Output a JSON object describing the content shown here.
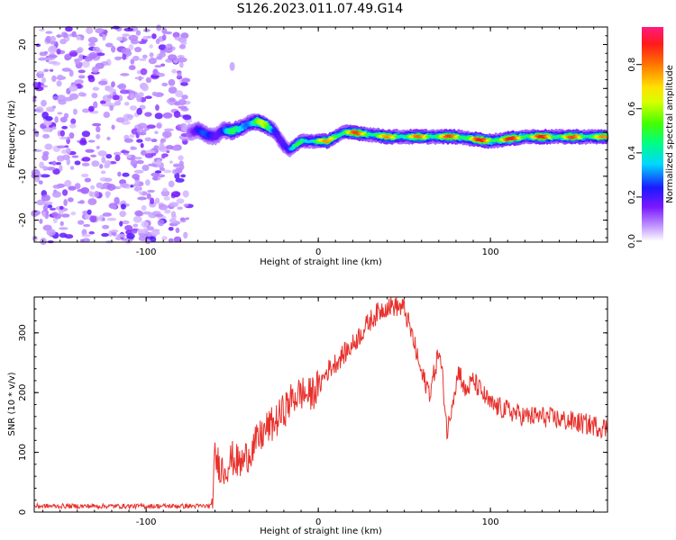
{
  "title": "S126.2023.011.07.49.G14",
  "chart_data": [
    {
      "type": "heatmap",
      "xlabel": "Height of straight line (km)",
      "ylabel": "Frequency (Hz)",
      "xlim": [
        -165,
        168
      ],
      "ylim": [
        -25,
        24
      ],
      "xticks": [
        -100,
        0,
        100
      ],
      "yticks": [
        -20,
        -10,
        0,
        10,
        20
      ],
      "colorbar": {
        "label": "Normalized spectral amplitude",
        "ticks": [
          "0.0",
          "0.2",
          "0.4",
          "0.6",
          "0.8"
        ],
        "range": [
          0,
          0.97
        ]
      },
      "ridge": {
        "x": [
          -75,
          -70,
          -65,
          -60,
          -55,
          -50,
          -45,
          -40,
          -35,
          -30,
          -25,
          -20,
          -17,
          -15,
          -10,
          -5,
          0,
          5,
          10,
          15,
          20,
          40,
          60,
          80,
          100,
          120,
          140,
          160,
          168
        ],
        "freq": [
          0,
          0.5,
          -0.5,
          -1,
          0.5,
          0.3,
          1,
          2,
          2.5,
          1.5,
          0,
          -3,
          -4,
          -3.5,
          -2,
          -2,
          -2,
          -2,
          -1,
          0,
          0,
          -1,
          -1,
          -1,
          -2,
          -1,
          -1,
          -1,
          -1
        ],
        "amp": [
          0.2,
          0.25,
          0.3,
          0.35,
          0.4,
          0.5,
          0.5,
          0.6,
          0.7,
          0.6,
          0.4,
          0.35,
          0.3,
          0.4,
          0.6,
          0.7,
          0.75,
          0.8,
          0.85,
          0.9,
          0.9,
          0.8,
          0.85,
          0.9,
          0.95,
          0.95,
          0.9,
          0.85,
          0.8
        ]
      },
      "noise_region_x": [
        -165,
        -75
      ],
      "noise_amplitude": 0.15
    },
    {
      "type": "line",
      "xlabel": "Height of straight line (km)",
      "ylabel": "SNR (10 * v/v)",
      "xlim": [
        -165,
        168
      ],
      "ylim": [
        0,
        360
      ],
      "xticks": [
        -100,
        0,
        100
      ],
      "yticks": [
        0,
        100,
        200,
        300
      ],
      "series": [
        {
          "color": "#e8312c",
          "x": [
            -165,
            -140,
            -120,
            -100,
            -80,
            -62,
            -60,
            -55,
            -50,
            -45,
            -40,
            -35,
            -30,
            -25,
            -20,
            -15,
            -10,
            -5,
            0,
            5,
            10,
            15,
            20,
            25,
            30,
            35,
            40,
            45,
            50,
            55,
            60,
            65,
            70,
            72,
            75,
            78,
            82,
            85,
            90,
            95,
            100,
            110,
            120,
            130,
            140,
            150,
            160,
            168
          ],
          "y": [
            10,
            10,
            10,
            10,
            10,
            10,
            90,
            70,
            90,
            80,
            100,
            120,
            140,
            150,
            170,
            190,
            200,
            195,
            210,
            235,
            250,
            265,
            280,
            300,
            320,
            335,
            345,
            345,
            340,
            290,
            230,
            200,
            270,
            230,
            130,
            190,
            240,
            200,
            220,
            200,
            180,
            170,
            160,
            160,
            155,
            150,
            145,
            140
          ],
          "noise": 18
        }
      ]
    }
  ]
}
